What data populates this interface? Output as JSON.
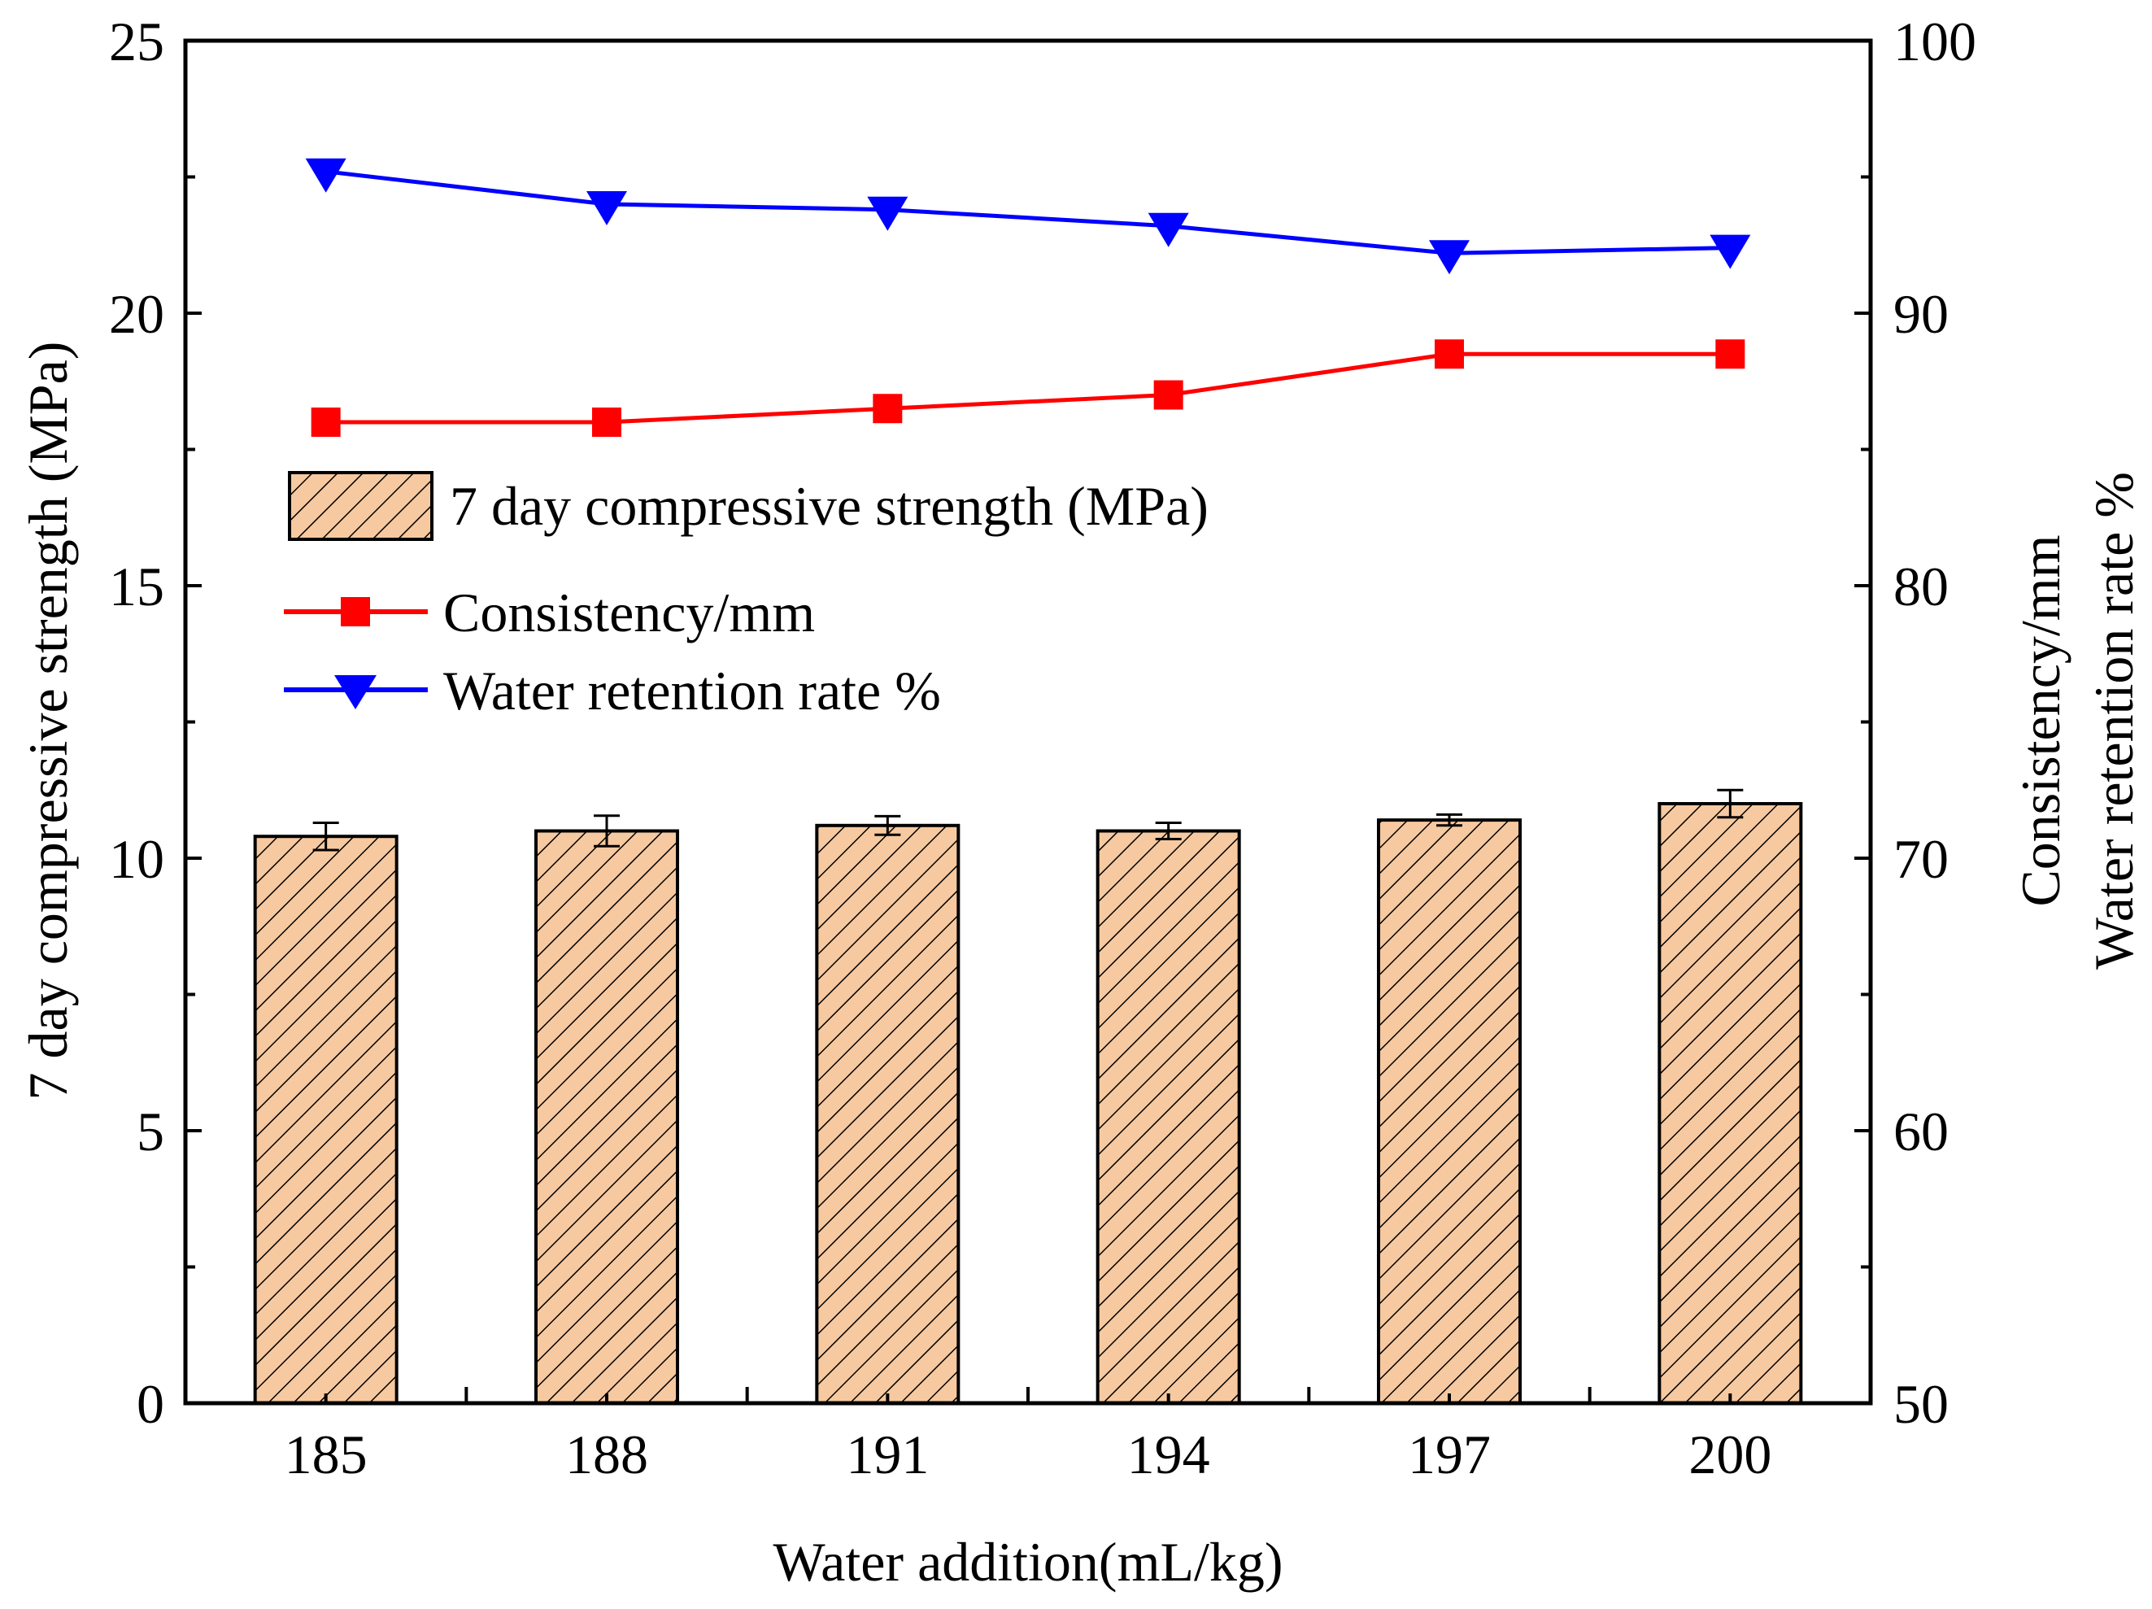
{
  "chart_data": {
    "type": "bar",
    "xlabel": "Water addition(mL/kg)",
    "ylabel_left": "7 day compressive strength (MPa)",
    "ylabel_right_line1": "Consistency/mm",
    "ylabel_right_line2": "Water retention rate %",
    "categories": [
      "185",
      "188",
      "191",
      "194",
      "197",
      "200"
    ],
    "ylim_left": [
      0,
      25
    ],
    "yticks_left": [
      "0",
      "5",
      "10",
      "15",
      "20",
      "25"
    ],
    "ylim_right": [
      50,
      100
    ],
    "yticks_right": [
      "50",
      "60",
      "70",
      "80",
      "90",
      "100"
    ],
    "series": [
      {
        "name": "7 day compressive strength (MPa)",
        "kind": "bar",
        "axis": "left",
        "values": [
          10.4,
          10.5,
          10.6,
          10.5,
          10.7,
          11.0
        ],
        "errors": [
          0.25,
          0.28,
          0.17,
          0.15,
          0.1,
          0.25
        ],
        "color": "#f7c9a0"
      },
      {
        "name": "Consistency/mm",
        "kind": "line",
        "axis": "right",
        "marker": "square",
        "values": [
          86.0,
          86.0,
          86.5,
          87.0,
          88.5,
          88.5
        ],
        "color": "#ff0000"
      },
      {
        "name": "Water retention rate %",
        "kind": "line",
        "axis": "right",
        "marker": "triangle-down",
        "values": [
          95.2,
          94.0,
          93.8,
          93.2,
          92.2,
          92.4
        ],
        "color": "#0000ff"
      }
    ],
    "legend_position": "upper-left"
  }
}
